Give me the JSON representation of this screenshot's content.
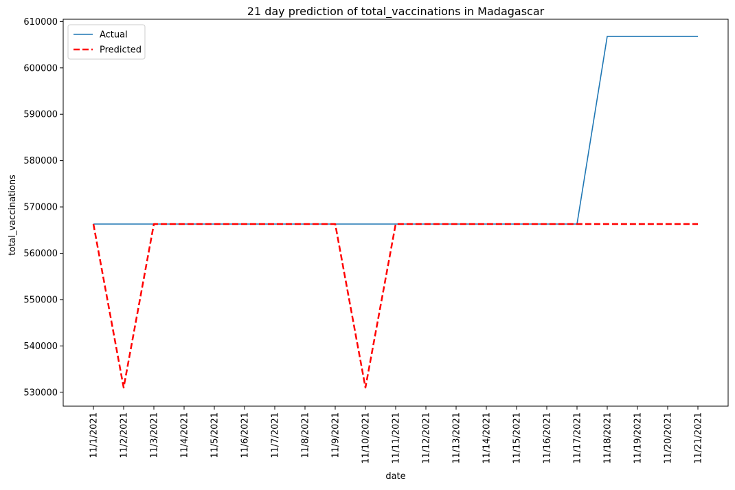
{
  "chart_data": {
    "type": "line",
    "title": "21 day prediction of total_vaccinations in Madagascar",
    "xlabel": "date",
    "ylabel": "total_vaccinations",
    "categories": [
      "11/1/2021",
      "11/2/2021",
      "11/3/2021",
      "11/4/2021",
      "11/5/2021",
      "11/6/2021",
      "11/7/2021",
      "11/8/2021",
      "11/9/2021",
      "11/10/2021",
      "11/11/2021",
      "11/12/2021",
      "11/13/2021",
      "11/14/2021",
      "11/15/2021",
      "11/16/2021",
      "11/17/2021",
      "11/18/2021",
      "11/19/2021",
      "11/20/2021",
      "11/21/2021"
    ],
    "ylim": [
      527000,
      610500
    ],
    "yticks": [
      530000,
      540000,
      550000,
      560000,
      570000,
      580000,
      590000,
      600000,
      610000
    ],
    "legend_position": "top-left",
    "grid": false,
    "series": [
      {
        "name": "Actual",
        "color": "#1f77b4",
        "style": "solid",
        "values": [
          566300,
          566300,
          566300,
          566300,
          566300,
          566300,
          566300,
          566300,
          566300,
          566300,
          566300,
          566300,
          566300,
          566300,
          566300,
          566300,
          566300,
          606800,
          606800,
          606800,
          606800
        ]
      },
      {
        "name": "Predicted",
        "color": "#ff0000",
        "style": "dashed",
        "values": [
          566300,
          531000,
          566300,
          566300,
          566300,
          566300,
          566300,
          566300,
          566300,
          531000,
          566300,
          566300,
          566300,
          566300,
          566300,
          566300,
          566300,
          566300,
          566300,
          566300,
          566300
        ]
      }
    ]
  }
}
